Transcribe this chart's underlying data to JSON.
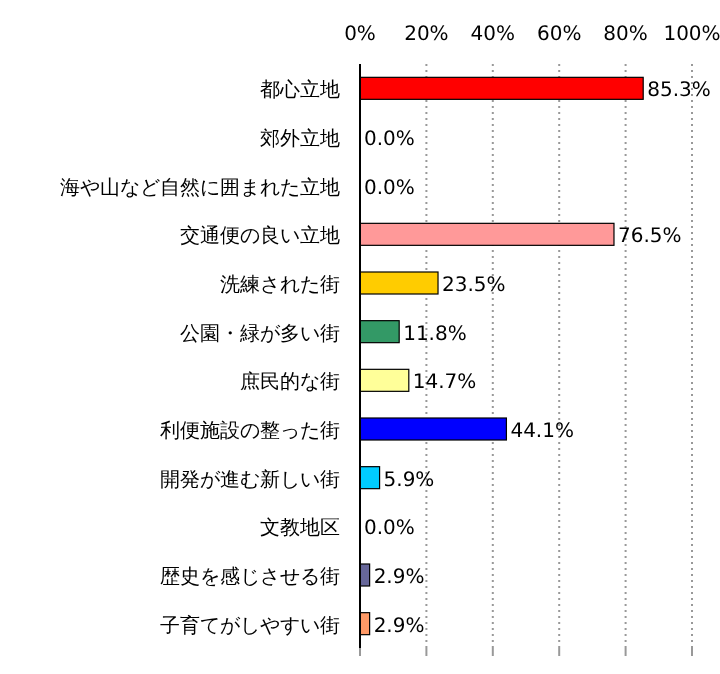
{
  "chart_data": {
    "type": "bar",
    "orientation": "horizontal",
    "categories": [
      "都心立地",
      "郊外立地",
      "海や山など自然に囲まれた立地",
      "交通便の良い立地",
      "洗練された街",
      "公園・緑が多い街",
      "庶民的な街",
      "利便施設の整った街",
      "開発が進む新しい街",
      "文教地区",
      "歴史を感じさせる街",
      "子育てがしやすい街"
    ],
    "values": [
      85.3,
      0.0,
      0.0,
      76.5,
      23.5,
      11.8,
      14.7,
      44.1,
      5.9,
      0.0,
      2.9,
      2.9
    ],
    "colors": [
      "#ff0000",
      "#993366",
      "#339966",
      "#ff9999",
      "#ffcc00",
      "#339966",
      "#ffff99",
      "#0000ff",
      "#00ccff",
      "#808080",
      "#666699",
      "#ff9966"
    ],
    "value_labels": [
      "85.3%",
      "0.0%",
      "0.0%",
      "76.5%",
      "23.5%",
      "11.8%",
      "14.7%",
      "44.1%",
      "5.9%",
      "0.0%",
      "2.9%",
      "2.9%"
    ],
    "xlim": [
      0,
      100
    ],
    "xticks": [
      {
        "value": 0,
        "label": "0%"
      },
      {
        "value": 20,
        "label": "20%"
      },
      {
        "value": 40,
        "label": "40%"
      },
      {
        "value": 60,
        "label": "60%"
      },
      {
        "value": 80,
        "label": "80%"
      },
      {
        "value": 100,
        "label": "100%"
      }
    ],
    "grid": "x"
  }
}
